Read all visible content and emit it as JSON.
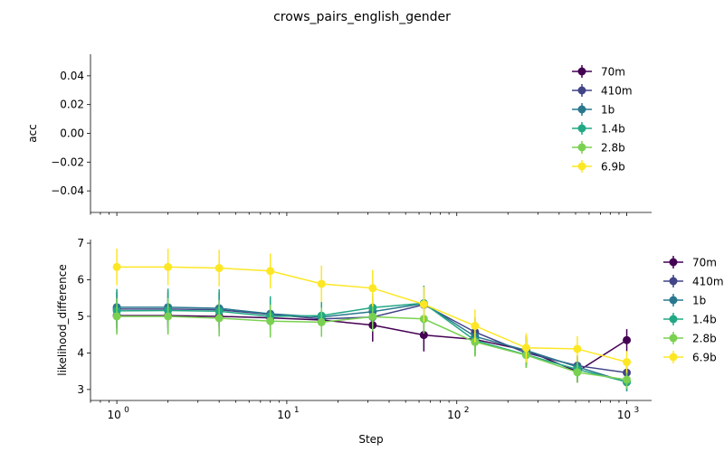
{
  "figure": {
    "title": "crows_pairs_english_gender"
  },
  "chart_data": [
    {
      "type": "line",
      "panel": "top",
      "ylabel": "acc",
      "xlabel": "",
      "x_scale": "log",
      "xlim": [
        0.7,
        1400
      ],
      "ylim": [
        -0.055,
        0.055
      ],
      "yticks": [
        "0.04",
        "0.02",
        "0.00",
        "−0.02",
        "−0.04"
      ],
      "ytick_values": [
        0.04,
        0.02,
        0.0,
        -0.02,
        -0.04
      ],
      "legend_position": "upper-right-inside",
      "series": [
        {
          "name": "70m",
          "color": "#440154"
        },
        {
          "name": "410m",
          "color": "#414487"
        },
        {
          "name": "1b",
          "color": "#2a788e"
        },
        {
          "name": "1.4b",
          "color": "#22a884"
        },
        {
          "name": "2.8b",
          "color": "#7ad151"
        },
        {
          "name": "6.9b",
          "color": "#fde725"
        }
      ]
    },
    {
      "type": "line",
      "panel": "bottom",
      "ylabel": "likelihood_difference",
      "xlabel": "Step",
      "x_scale": "log",
      "xlim": [
        0.7,
        1400
      ],
      "ylim": [
        2.7,
        7.1
      ],
      "yticks": [
        "7",
        "6",
        "5",
        "4",
        "3"
      ],
      "ytick_values": [
        7,
        6,
        5,
        4,
        3
      ],
      "xtick_values": [
        1,
        10,
        100,
        1000
      ],
      "xtick_labels": [
        {
          "base": "10",
          "exp": "0"
        },
        {
          "base": "10",
          "exp": "1"
        },
        {
          "base": "10",
          "exp": "2"
        },
        {
          "base": "10",
          "exp": "3"
        }
      ],
      "legend_position": "outside-right",
      "x": [
        1,
        2,
        4,
        8,
        16,
        32,
        64,
        128,
        256,
        512,
        1000
      ],
      "series": [
        {
          "name": "70m",
          "color": "#440154",
          "values": [
            5.02,
            5.02,
            5.0,
            4.96,
            4.9,
            4.76,
            4.49,
            4.37,
            4.07,
            3.49,
            4.35
          ],
          "errors": [
            0.35,
            0.35,
            0.34,
            0.33,
            0.34,
            0.45,
            0.45,
            0.45,
            0.4,
            0.3,
            0.3
          ]
        },
        {
          "name": "410m",
          "color": "#414487",
          "values": [
            5.2,
            5.2,
            5.18,
            5.05,
            4.93,
            4.98,
            5.32,
            4.57,
            4.0,
            3.65,
            3.46
          ],
          "errors": [
            0.45,
            0.45,
            0.45,
            0.4,
            0.38,
            0.4,
            0.48,
            0.4,
            0.35,
            0.28,
            0.25
          ]
        },
        {
          "name": "1b",
          "color": "#2a788e",
          "values": [
            5.25,
            5.25,
            5.22,
            5.07,
            4.98,
            5.13,
            5.35,
            4.45,
            4.07,
            3.62,
            3.2
          ],
          "errors": [
            0.45,
            0.45,
            0.45,
            0.4,
            0.38,
            0.4,
            0.48,
            0.4,
            0.35,
            0.28,
            0.25
          ]
        },
        {
          "name": "1.4b",
          "color": "#22a884",
          "values": [
            5.15,
            5.16,
            5.14,
            5.0,
            5.02,
            5.24,
            5.36,
            4.34,
            3.95,
            3.55,
            3.21
          ],
          "errors": [
            0.6,
            0.6,
            0.6,
            0.55,
            0.45,
            0.4,
            0.48,
            0.4,
            0.35,
            0.28,
            0.25
          ]
        },
        {
          "name": "2.8b",
          "color": "#7ad151",
          "values": [
            5.0,
            5.0,
            4.95,
            4.87,
            4.84,
            4.99,
            4.93,
            4.3,
            3.94,
            3.47,
            3.27
          ],
          "errors": [
            0.5,
            0.5,
            0.5,
            0.45,
            0.4,
            0.4,
            0.4,
            0.4,
            0.35,
            0.28,
            0.25
          ]
        },
        {
          "name": "6.9b",
          "color": "#fde725",
          "values": [
            6.35,
            6.35,
            6.32,
            6.24,
            5.89,
            5.77,
            5.33,
            4.74,
            4.14,
            4.11,
            3.75
          ],
          "errors": [
            0.5,
            0.5,
            0.5,
            0.48,
            0.5,
            0.5,
            0.48,
            0.45,
            0.4,
            0.35,
            0.3
          ]
        }
      ]
    }
  ]
}
